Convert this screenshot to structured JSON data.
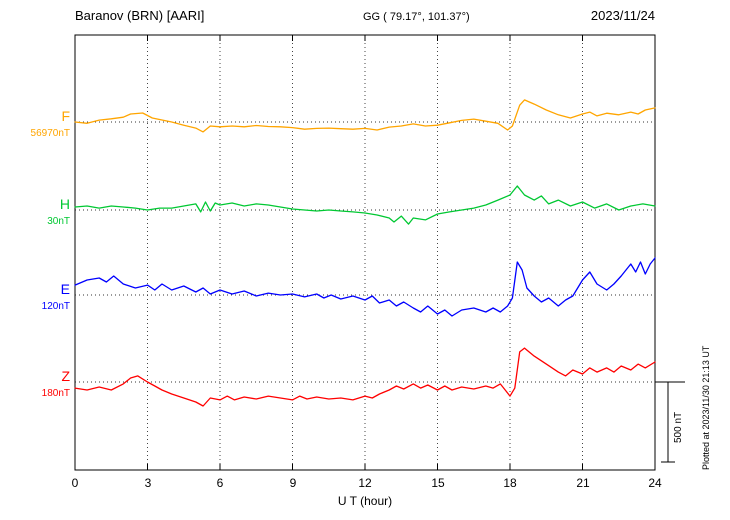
{
  "header": {
    "station": "Baranov (BRN)  [AARI]",
    "coordinates": "GG ( 79.17°, 101.37°)",
    "date": "2023/11/24"
  },
  "axis": {
    "xlabel": "U T (hour)",
    "tick_labels": [
      "0",
      "3",
      "6",
      "9",
      "12",
      "15",
      "18",
      "21",
      "24"
    ]
  },
  "annotations": {
    "scale_bar": "500 nT",
    "plotted_at": "Plotted at 2023/11/30 21:13 UT"
  },
  "chart_data": {
    "type": "line",
    "title": "Baranov (BRN) [AARI] magnetogram 2023/11/24",
    "xlabel": "U T (hour)",
    "x_range": [
      0,
      24
    ],
    "x_ticks": [
      0,
      3,
      6,
      9,
      12,
      15,
      18,
      21,
      24
    ],
    "y_units": "nT offset from component baseline",
    "scale_bar_nT": 500,
    "grid": "dotted vertical lines every 3 h; dotted horizontal baseline per component",
    "legend_position": "left margin, one colored label per trace",
    "series": [
      {
        "name": "F",
        "baseline_label": "56970nT",
        "color": "#FFA500",
        "x": [
          0,
          0.5,
          1,
          1.5,
          2,
          2.3,
          2.8,
          3.2,
          4,
          4.5,
          5,
          5.3,
          5.6,
          6,
          6.5,
          7,
          7.5,
          8,
          8.5,
          9,
          9.5,
          10,
          10.5,
          11,
          11.5,
          12,
          12.5,
          13,
          13.5,
          14,
          14.5,
          15,
          15.5,
          16,
          16.5,
          17,
          17.5,
          17.9,
          18.1,
          18.4,
          18.6,
          19,
          19.5,
          20,
          20.5,
          21,
          21.3,
          21.6,
          22,
          22.5,
          23,
          23.3,
          23.6,
          24
        ],
        "values": [
          0,
          -8,
          12,
          20,
          30,
          50,
          56,
          25,
          0,
          -20,
          -38,
          -62,
          -25,
          -30,
          -25,
          -30,
          -22,
          -28,
          -30,
          -35,
          -45,
          -40,
          -38,
          -42,
          -45,
          -40,
          -50,
          -32,
          -25,
          -12,
          -25,
          -20,
          -5,
          10,
          18,
          5,
          -8,
          -50,
          -25,
          105,
          138,
          112,
          75,
          45,
          25,
          50,
          62,
          38,
          55,
          45,
          62,
          50,
          75,
          88
        ]
      },
      {
        "name": "H",
        "baseline_label": "30nT",
        "color": "#00C832",
        "x": [
          0,
          0.5,
          1,
          1.5,
          2,
          2.5,
          3,
          3.5,
          4,
          4.5,
          5,
          5.2,
          5.4,
          5.6,
          5.8,
          6,
          6.5,
          7,
          7.5,
          8,
          8.5,
          9,
          9.5,
          10,
          10.5,
          11,
          11.5,
          12,
          12.5,
          13,
          13.2,
          13.5,
          13.8,
          14,
          14.5,
          15,
          15.5,
          16,
          16.5,
          17,
          17.5,
          18,
          18.3,
          18.6,
          19,
          19.3,
          19.6,
          20,
          20.5,
          21,
          21.5,
          22,
          22.5,
          23,
          23.5,
          24
        ],
        "values": [
          19,
          25,
          12,
          25,
          19,
          12,
          0,
          12,
          12,
          25,
          38,
          -12,
          50,
          -6,
          44,
          31,
          44,
          25,
          38,
          31,
          19,
          6,
          0,
          -6,
          0,
          -6,
          -12,
          -19,
          -31,
          -50,
          -75,
          -38,
          -88,
          -50,
          -62,
          -25,
          -12,
          0,
          12,
          31,
          62,
          94,
          150,
          94,
          62,
          88,
          38,
          62,
          25,
          50,
          12,
          38,
          0,
          25,
          38,
          25
        ]
      },
      {
        "name": "E",
        "baseline_label": "120nT",
        "color": "#0000FF",
        "x": [
          0,
          0.5,
          1,
          1.3,
          1.6,
          2,
          2.5,
          3,
          3.3,
          3.6,
          4,
          4.5,
          5,
          5.3,
          5.6,
          6,
          6.5,
          7,
          7.5,
          8,
          8.5,
          9,
          9.5,
          10,
          10.3,
          10.6,
          11,
          11.5,
          12,
          12.3,
          12.6,
          13,
          13.3,
          13.6,
          14,
          14.3,
          14.6,
          15,
          15.3,
          15.6,
          16,
          16.5,
          17,
          17.3,
          17.6,
          17.9,
          18.1,
          18.3,
          18.5,
          18.7,
          19,
          19.3,
          19.6,
          20,
          20.3,
          20.6,
          21,
          21.3,
          21.6,
          22,
          22.3,
          22.6,
          23,
          23.2,
          23.4,
          23.6,
          23.8,
          24
        ],
        "values": [
          62,
          94,
          106,
          81,
          119,
          69,
          44,
          62,
          31,
          69,
          31,
          56,
          19,
          44,
          6,
          31,
          6,
          25,
          -6,
          12,
          0,
          6,
          -12,
          6,
          -19,
          0,
          -25,
          -6,
          -31,
          -6,
          -50,
          -31,
          -69,
          -44,
          -81,
          -106,
          -69,
          -119,
          -94,
          -131,
          -94,
          -81,
          -106,
          -81,
          -106,
          -69,
          -19,
          206,
          156,
          44,
          -6,
          -44,
          -19,
          -69,
          -31,
          -6,
          94,
          144,
          69,
          31,
          69,
          119,
          194,
          144,
          206,
          131,
          194,
          231
        ]
      },
      {
        "name": "Z",
        "baseline_label": "180nT",
        "color": "#FF0000",
        "x": [
          0,
          0.5,
          1,
          1.5,
          2,
          2.3,
          2.6,
          3,
          3.3,
          3.6,
          4,
          4.5,
          5,
          5.3,
          5.6,
          6,
          6.3,
          6.6,
          7,
          7.5,
          8,
          8.5,
          9,
          9.3,
          9.6,
          10,
          10.5,
          11,
          11.5,
          12,
          12.3,
          12.6,
          13,
          13.3,
          13.6,
          14,
          14.3,
          14.6,
          15,
          15.3,
          15.6,
          16,
          16.5,
          17,
          17.3,
          17.6,
          17.8,
          18,
          18.2,
          18.4,
          18.6,
          19,
          19.5,
          20,
          20.3,
          20.6,
          21,
          21.3,
          21.6,
          22,
          22.3,
          22.6,
          23,
          23.3,
          23.6,
          24
        ],
        "values": [
          -38,
          -50,
          -31,
          -50,
          -12,
          25,
          38,
          0,
          -25,
          -50,
          -75,
          -100,
          -125,
          -150,
          -100,
          -112,
          -88,
          -112,
          -94,
          -106,
          -88,
          -100,
          -112,
          -88,
          -106,
          -94,
          -106,
          -100,
          -112,
          -88,
          -100,
          -75,
          -50,
          -25,
          -44,
          -12,
          -38,
          -19,
          -50,
          -25,
          -50,
          -31,
          -44,
          -25,
          -38,
          -12,
          -50,
          -88,
          -38,
          188,
          212,
          162,
          112,
          62,
          38,
          75,
          50,
          88,
          62,
          88,
          62,
          100,
          75,
          112,
          88,
          125
        ]
      }
    ]
  }
}
